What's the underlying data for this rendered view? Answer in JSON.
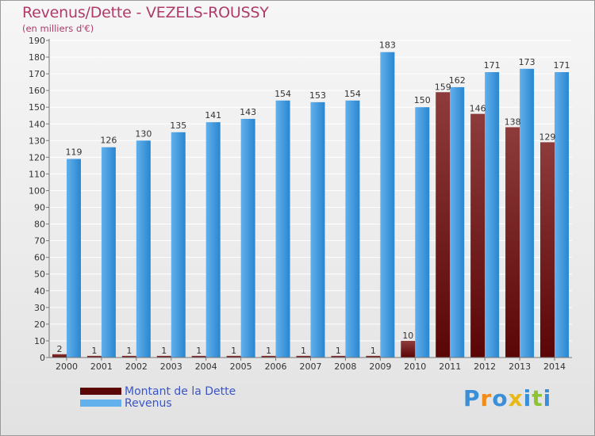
{
  "colors": {
    "debt_top": "#8e3b3b",
    "debt_bottom": "#5a0606",
    "rev_light": "#62b0ec",
    "rev_dark": "#2a86cf",
    "grid": "#ffffff",
    "title": "#b03a6a",
    "legend_text": "#3a55c8"
  },
  "brand": {
    "letters": [
      "P",
      "r",
      "o",
      "x",
      "i",
      "t",
      "i"
    ],
    "letter_colors": [
      "#3a8fd8",
      "#f08a18",
      "#3a8fd8",
      "#e8b818",
      "#3a8fd8",
      "#8cc432",
      "#3a8fd8"
    ]
  },
  "chart_data": {
    "type": "bar",
    "title": "Revenus/Dette - VEZELS-ROUSSY",
    "subtitle": "(en milliers d'€)",
    "categories": [
      "2000",
      "2001",
      "2002",
      "2003",
      "2004",
      "2005",
      "2006",
      "2007",
      "2008",
      "2009",
      "2010",
      "2011",
      "2012",
      "2013",
      "2014"
    ],
    "series": [
      {
        "name": "Montant de la Dette",
        "values": [
          2,
          1,
          1,
          1,
          1,
          1,
          1,
          1,
          1,
          1,
          10,
          159,
          146,
          138,
          129
        ]
      },
      {
        "name": "Revenus",
        "values": [
          119,
          126,
          130,
          135,
          141,
          143,
          154,
          153,
          154,
          183,
          150,
          162,
          171,
          173,
          171
        ]
      }
    ],
    "yticks": [
      0,
      10,
      20,
      30,
      40,
      50,
      60,
      70,
      80,
      90,
      100,
      110,
      120,
      130,
      140,
      150,
      160,
      170,
      180,
      190
    ],
    "ylim": [
      0,
      190
    ],
    "grid": true,
    "legend": "bottom-left"
  }
}
